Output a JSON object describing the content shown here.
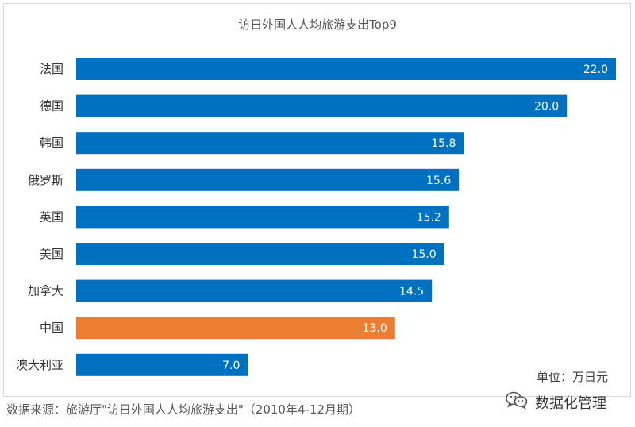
{
  "chart_data": {
    "type": "bar",
    "orientation": "horizontal",
    "title": "访日外国人人均旅游支出Top9",
    "categories": [
      "法国",
      "德国",
      "韩国",
      "俄罗斯",
      "英国",
      "美国",
      "加拿大",
      "中国",
      "澳大利亚"
    ],
    "values": [
      22.0,
      20.0,
      15.8,
      15.6,
      15.2,
      15.0,
      14.5,
      13.0,
      7.0
    ],
    "value_labels": [
      "22.0",
      "20.0",
      "15.8",
      "15.6",
      "15.2",
      "15.0",
      "14.5",
      "13.0",
      "7.0"
    ],
    "xlim": [
      0,
      22
    ],
    "grid": false,
    "legend": "none",
    "colors": {
      "default": "#0070C0",
      "highlight": "#ED7D31",
      "highlight_category": "中国"
    }
  },
  "unit_label": "单位：万日元",
  "source_label": "数据来源：旅游厅\"访日外国人人均旅游支出\"（2010年4-12月期）",
  "brand": {
    "icon": "wechat-icon",
    "text": "数据化管理"
  }
}
